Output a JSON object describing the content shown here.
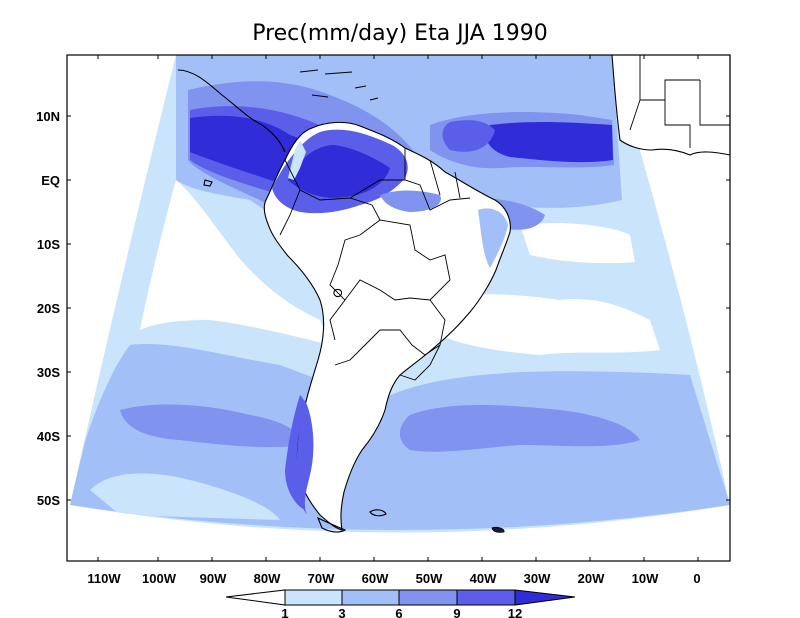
{
  "map": {
    "title": "Prec(mm/day) Eta JJA 1990",
    "variable": "Precipitation",
    "units": "mm/day",
    "model": "Eta",
    "season": "JJA",
    "year": "1990",
    "lat_ticks": [
      "10N",
      "EQ",
      "10S",
      "20S",
      "30S",
      "40S",
      "50S"
    ],
    "lon_ticks": [
      "110W",
      "100W",
      "90W",
      "80W",
      "70W",
      "60W",
      "50W",
      "40W",
      "30W",
      "20W",
      "10W",
      "0"
    ],
    "colorbar": {
      "labels": [
        "1",
        "3",
        "6",
        "9",
        "12"
      ],
      "levels": [
        1,
        3,
        6,
        9,
        12
      ],
      "colors": [
        "#ffffff",
        "#c9e4fb",
        "#a3bff7",
        "#7f93ef",
        "#5a5ee8",
        "#2f2cd8"
      ]
    },
    "colors": {
      "background": "#ffffff",
      "land": "#ffffff",
      "c1": "#c9e4fb",
      "c2": "#a3bff7",
      "c3": "#7f93ef",
      "c4": "#5a5ee8",
      "c5": "#2f2cd8"
    }
  }
}
